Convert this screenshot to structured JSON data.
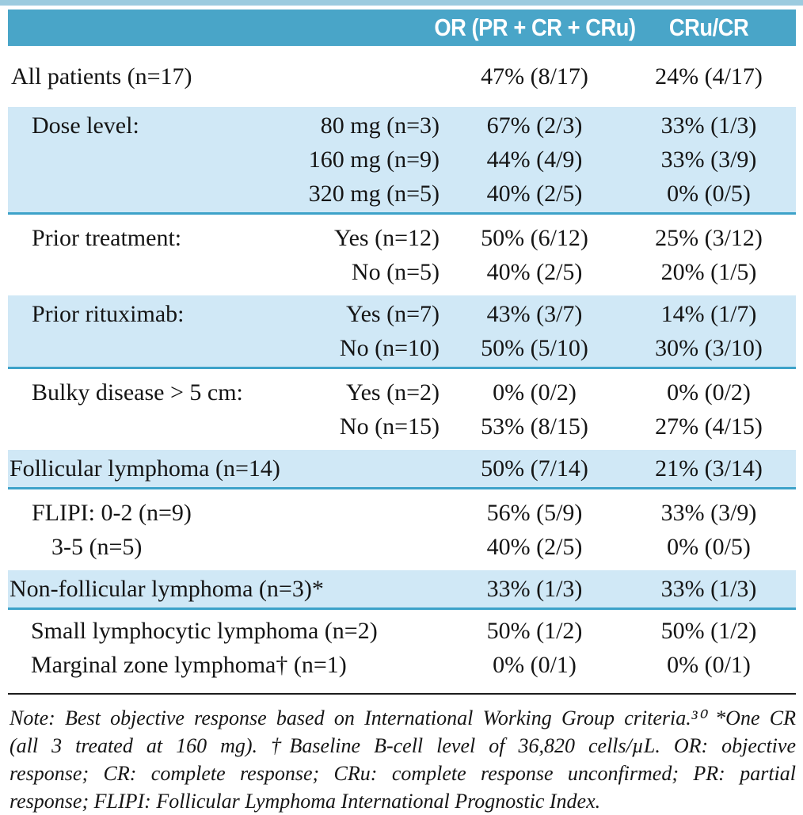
{
  "colors": {
    "header_bg": "#49a5c8",
    "header_text": "#ffffff",
    "band_bg": "#d0e8f6",
    "separator": "#3da2c9",
    "top_strip": "#9ccbdf",
    "body_text": "#151515",
    "rule": "#1c1c1c"
  },
  "header": {
    "or_label": "OR (PR + CR + CRu)",
    "cru_label": "CRu/CR"
  },
  "table": {
    "sections": [
      {
        "band": false,
        "first": true,
        "separator_after": false,
        "rows": [
          {
            "label": "All patients (n=17)",
            "indent": 4,
            "sub": "",
            "or": "47% (8/17)",
            "cru": "24% (4/17)"
          }
        ]
      },
      {
        "band": true,
        "first": false,
        "separator_after": true,
        "rows": [
          {
            "label": "Dose level:",
            "indent": 30,
            "sub": "80 mg (n=3)",
            "or": "67% (2/3)",
            "cru": "33% (1/3)"
          },
          {
            "label": "",
            "indent": 30,
            "sub": "160 mg (n=9)",
            "or": "44% (4/9)",
            "cru": "33% (3/9)"
          },
          {
            "label": "",
            "indent": 30,
            "sub": "320 mg (n=5)",
            "or": "40% (2/5)",
            "cru": "0% (0/5)"
          }
        ]
      },
      {
        "band": false,
        "first": false,
        "separator_after": false,
        "rows": [
          {
            "label": "Prior treatment:",
            "indent": 30,
            "sub": "Yes (n=12)",
            "or": "50% (6/12)",
            "cru": "25% (3/12)"
          },
          {
            "label": "",
            "indent": 30,
            "sub": "No (n=5)",
            "or": "40% (2/5)",
            "cru": "20% (1/5)"
          }
        ]
      },
      {
        "band": true,
        "first": false,
        "separator_after": true,
        "rows": [
          {
            "label": "Prior rituximab:",
            "indent": 30,
            "sub": "Yes (n=7)",
            "or": "43% (3/7)",
            "cru": "14% (1/7)"
          },
          {
            "label": "",
            "indent": 30,
            "sub": "No (n=10)",
            "or": "50% (5/10)",
            "cru": "30% (3/10)"
          }
        ]
      },
      {
        "band": false,
        "first": false,
        "separator_after": false,
        "rows": [
          {
            "label": "Bulky disease > 5 cm:",
            "indent": 30,
            "sub": "Yes (n=2)",
            "or": "0% (0/2)",
            "cru": "0% (0/2)"
          },
          {
            "label": "",
            "indent": 30,
            "sub": "No (n=15)",
            "or": "53% (8/15)",
            "cru": "27% (4/15)"
          }
        ]
      },
      {
        "band": true,
        "first": false,
        "separator_after": true,
        "rows": [
          {
            "label": "Follicular lymphoma (n=14)",
            "indent": 2,
            "sub": "",
            "or": "50% (7/14)",
            "cru": "21% (3/14)"
          }
        ]
      },
      {
        "band": false,
        "first": false,
        "separator_after": false,
        "rows": [
          {
            "label": "FLIPI: 0-2 (n=9)",
            "indent": 30,
            "sub": "",
            "or": "56% (5/9)",
            "cru": "33% (3/9)"
          },
          {
            "label": "3-5 (n=5)",
            "indent": 55,
            "sub": "",
            "or": "40% (2/5)",
            "cru": "0% (0/5)"
          }
        ]
      },
      {
        "band": true,
        "first": false,
        "separator_after": true,
        "rows": [
          {
            "label": "Non-follicular lymphoma (n=3)*",
            "indent": 2,
            "sub": "",
            "or": "33% (1/3)",
            "cru": "33% (1/3)"
          }
        ]
      },
      {
        "band": false,
        "first": false,
        "last": true,
        "separator_after": false,
        "rows": [
          {
            "label": "Small lymphocytic lymphoma (n=2)",
            "indent": 29,
            "sub": "",
            "or": "50% (1/2)",
            "cru": "50% (1/2)"
          },
          {
            "label": "Marginal zone lymphoma† (n=1)",
            "indent": 29,
            "sub": "",
            "or": "0% (0/1)",
            "cru": "0% (0/1)"
          }
        ]
      }
    ]
  },
  "note": {
    "lines": [
      "Note: Best objective response based on International Working Group criteria.³⁰ *One CR",
      "(all 3 treated at 160 mg). †Baseline B-cell level of 36,820 cells/µL. OR: objective",
      "response; CR: complete response; CRu: complete response unconfirmed; PR: partial",
      "response; FLIPI: Follicular Lymphoma International Prognostic Index."
    ]
  }
}
